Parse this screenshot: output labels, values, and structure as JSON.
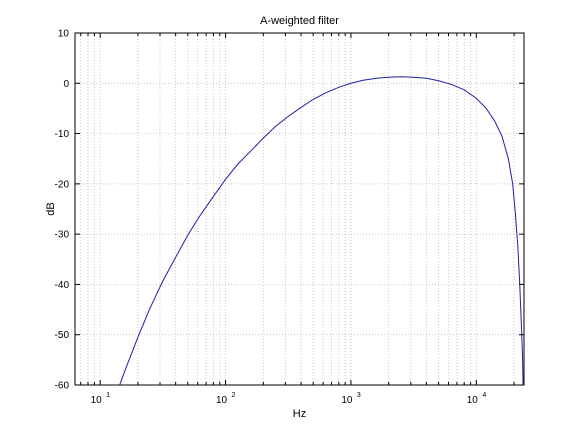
{
  "chart_data": {
    "type": "line",
    "title": "A-weighted filter",
    "xlabel": "Hz",
    "ylabel": "dB",
    "xscale": "log",
    "xlim": [
      6.3,
      24000
    ],
    "ylim": [
      -60,
      10
    ],
    "x_ticks": [
      {
        "base": "10",
        "exp": "1",
        "value": 10
      },
      {
        "base": "10",
        "exp": "2",
        "value": 100
      },
      {
        "base": "10",
        "exp": "3",
        "value": 1000
      },
      {
        "base": "10",
        "exp": "4",
        "value": 10000
      }
    ],
    "y_ticks": [
      {
        "label": "10",
        "value": 10
      },
      {
        "label": "0",
        "value": 0
      },
      {
        "label": "-10",
        "value": -10
      },
      {
        "label": "-20",
        "value": -20
      },
      {
        "label": "-30",
        "value": -30
      },
      {
        "label": "-40",
        "value": -40
      },
      {
        "label": "-50",
        "value": -50
      },
      {
        "label": "-60",
        "value": -60
      }
    ],
    "grid": true,
    "grid_style": "dotted",
    "line_color": "#1f1fa8",
    "series": [
      {
        "x": [
          14.3,
          16,
          20,
          25,
          31.5,
          40,
          50,
          63,
          80,
          100,
          125,
          160,
          200,
          250,
          315,
          400,
          500,
          630,
          800,
          1000,
          1250,
          1600,
          2000,
          2500,
          3150,
          4000,
          5000,
          6300,
          8000,
          10000,
          12000,
          14000,
          16000,
          18000,
          19500,
          20500,
          21500,
          22200,
          22700,
          23100,
          23400,
          23600
        ],
        "y": [
          -60,
          -56.7,
          -50.5,
          -44.7,
          -39.4,
          -34.6,
          -30.2,
          -26.2,
          -22.5,
          -19.1,
          -16.1,
          -13.4,
          -10.9,
          -8.6,
          -6.6,
          -4.8,
          -3.2,
          -1.9,
          -0.8,
          0,
          0.6,
          1.0,
          1.2,
          1.3,
          1.2,
          1.0,
          0.5,
          -0.2,
          -1.3,
          -3.0,
          -5.0,
          -7.5,
          -10.5,
          -15.0,
          -20.0,
          -26.0,
          -33.0,
          -40.0,
          -46.0,
          -51.0,
          -55.0,
          -60
        ]
      }
    ]
  }
}
